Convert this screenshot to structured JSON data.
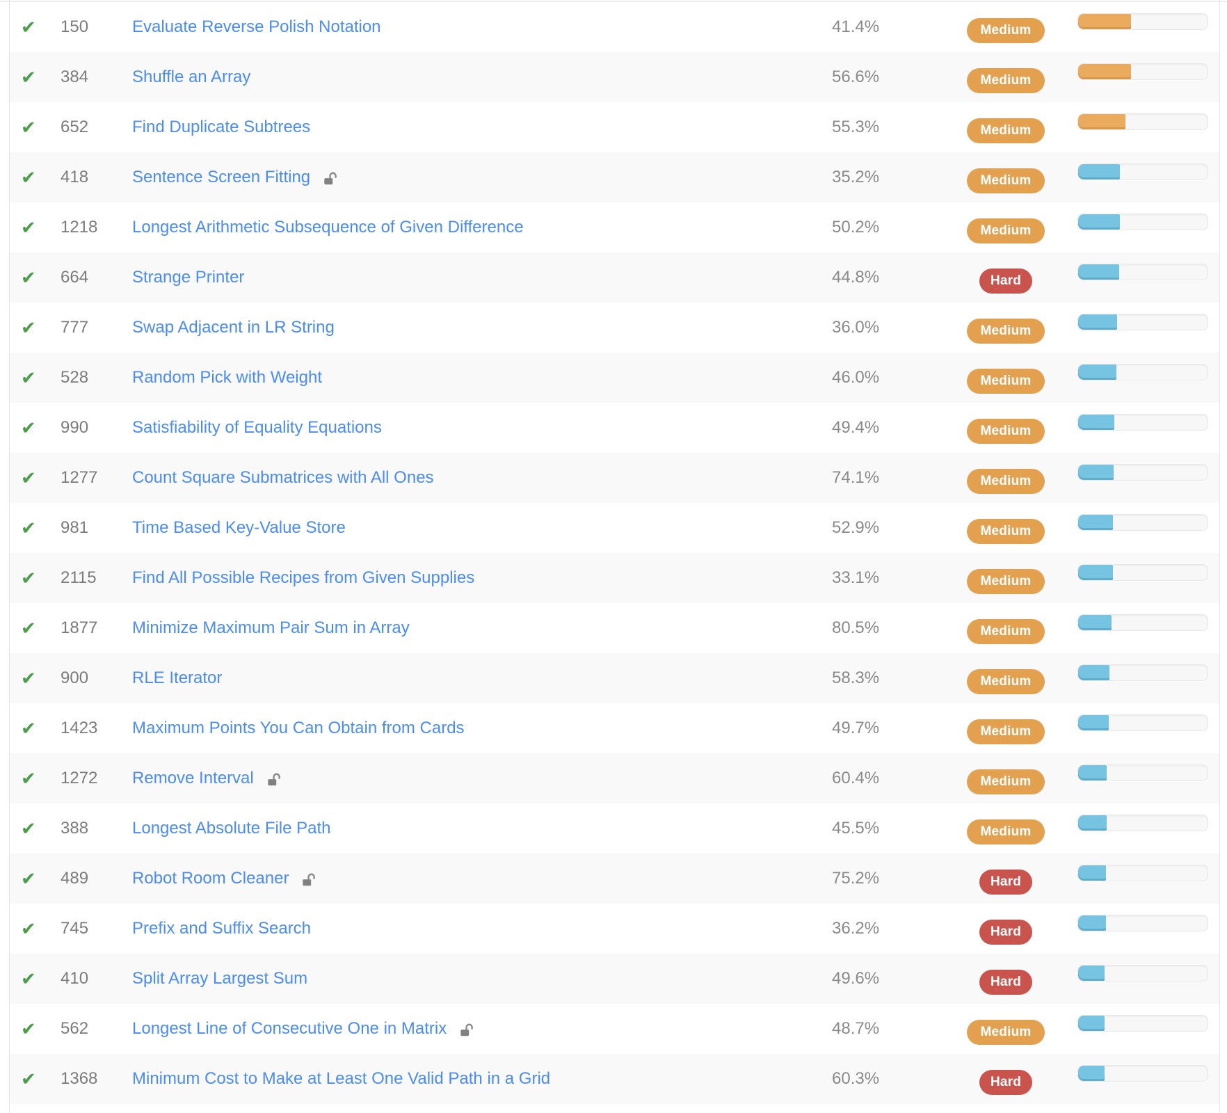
{
  "colors": {
    "link_blue": "#4a8cf4",
    "id_gray": "#7b7b7b",
    "pct_gray": "#8a8a8a",
    "check_green": "#4a9d4a",
    "medium_badge": "#e3a14f",
    "hard_badge": "#c9544e",
    "bar_orange": "#ebab5e",
    "bar_blue": "#76c4e2",
    "row_stripe": "#f9f9f9",
    "lock_gray": "#818181"
  },
  "icons": {
    "check_glyph": "✔",
    "solved_icon_name": "check-icon",
    "premium_icon_name": "lock-open-icon"
  },
  "difficulty_labels": {
    "medium": "Medium",
    "hard": "Hard"
  },
  "table": {
    "rows": [
      {
        "id": "150",
        "title": "Evaluate Reverse Polish Notation",
        "acceptance": "41.4%",
        "difficulty": "Medium",
        "locked": false,
        "frequency_percent": 41.0,
        "bar_color": "orange"
      },
      {
        "id": "384",
        "title": "Shuffle an Array",
        "acceptance": "56.6%",
        "difficulty": "Medium",
        "locked": false,
        "frequency_percent": 41.0,
        "bar_color": "orange"
      },
      {
        "id": "652",
        "title": "Find Duplicate Subtrees",
        "acceptance": "55.3%",
        "difficulty": "Medium",
        "locked": false,
        "frequency_percent": 36.4,
        "bar_color": "orange"
      },
      {
        "id": "418",
        "title": "Sentence Screen Fitting",
        "acceptance": "35.2%",
        "difficulty": "Medium",
        "locked": true,
        "frequency_percent": 32.0,
        "bar_color": "blue"
      },
      {
        "id": "1218",
        "title": "Longest Arithmetic Subsequence of Given Difference",
        "acceptance": "50.2%",
        "difficulty": "Medium",
        "locked": false,
        "frequency_percent": 32.0,
        "bar_color": "blue"
      },
      {
        "id": "664",
        "title": "Strange Printer",
        "acceptance": "44.8%",
        "difficulty": "Hard",
        "locked": false,
        "frequency_percent": 31.8,
        "bar_color": "blue"
      },
      {
        "id": "777",
        "title": "Swap Adjacent in LR String",
        "acceptance": "36.0%",
        "difficulty": "Medium",
        "locked": false,
        "frequency_percent": 30.0,
        "bar_color": "blue"
      },
      {
        "id": "528",
        "title": "Random Pick with Weight",
        "acceptance": "46.0%",
        "difficulty": "Medium",
        "locked": false,
        "frequency_percent": 29.8,
        "bar_color": "blue"
      },
      {
        "id": "990",
        "title": "Satisfiability of Equality Equations",
        "acceptance": "49.4%",
        "difficulty": "Medium",
        "locked": false,
        "frequency_percent": 28.0,
        "bar_color": "blue"
      },
      {
        "id": "1277",
        "title": "Count Square Submatrices with All Ones",
        "acceptance": "74.1%",
        "difficulty": "Medium",
        "locked": false,
        "frequency_percent": 27.5,
        "bar_color": "blue"
      },
      {
        "id": "981",
        "title": "Time Based Key-Value Store",
        "acceptance": "52.9%",
        "difficulty": "Medium",
        "locked": false,
        "frequency_percent": 27.0,
        "bar_color": "blue"
      },
      {
        "id": "2115",
        "title": "Find All Possible Recipes from Given Supplies",
        "acceptance": "33.1%",
        "difficulty": "Medium",
        "locked": false,
        "frequency_percent": 27.0,
        "bar_color": "blue"
      },
      {
        "id": "1877",
        "title": "Minimize Maximum Pair Sum in Array",
        "acceptance": "80.5%",
        "difficulty": "Medium",
        "locked": false,
        "frequency_percent": 25.6,
        "bar_color": "blue"
      },
      {
        "id": "900",
        "title": "RLE Iterator",
        "acceptance": "58.3%",
        "difficulty": "Medium",
        "locked": false,
        "frequency_percent": 24.4,
        "bar_color": "blue"
      },
      {
        "id": "1423",
        "title": "Maximum Points You Can Obtain from Cards",
        "acceptance": "49.7%",
        "difficulty": "Medium",
        "locked": false,
        "frequency_percent": 23.5,
        "bar_color": "blue"
      },
      {
        "id": "1272",
        "title": "Remove Interval",
        "acceptance": "60.4%",
        "difficulty": "Medium",
        "locked": true,
        "frequency_percent": 22.3,
        "bar_color": "blue"
      },
      {
        "id": "388",
        "title": "Longest Absolute File Path",
        "acceptance": "45.5%",
        "difficulty": "Medium",
        "locked": false,
        "frequency_percent": 21.9,
        "bar_color": "blue"
      },
      {
        "id": "489",
        "title": "Robot Room Cleaner",
        "acceptance": "75.2%",
        "difficulty": "Hard",
        "locked": true,
        "frequency_percent": 21.7,
        "bar_color": "blue"
      },
      {
        "id": "745",
        "title": "Prefix and Suffix Search",
        "acceptance": "36.2%",
        "difficulty": "Hard",
        "locked": false,
        "frequency_percent": 21.5,
        "bar_color": "blue"
      },
      {
        "id": "410",
        "title": "Split Array Largest Sum",
        "acceptance": "49.6%",
        "difficulty": "Hard",
        "locked": false,
        "frequency_percent": 20.5,
        "bar_color": "blue"
      },
      {
        "id": "562",
        "title": "Longest Line of Consecutive One in Matrix",
        "acceptance": "48.7%",
        "difficulty": "Medium",
        "locked": true,
        "frequency_percent": 20.3,
        "bar_color": "blue"
      },
      {
        "id": "1368",
        "title": "Minimum Cost to Make at Least One Valid Path in a Grid",
        "acceptance": "60.3%",
        "difficulty": "Hard",
        "locked": false,
        "frequency_percent": 20.5,
        "bar_color": "blue"
      }
    ]
  }
}
